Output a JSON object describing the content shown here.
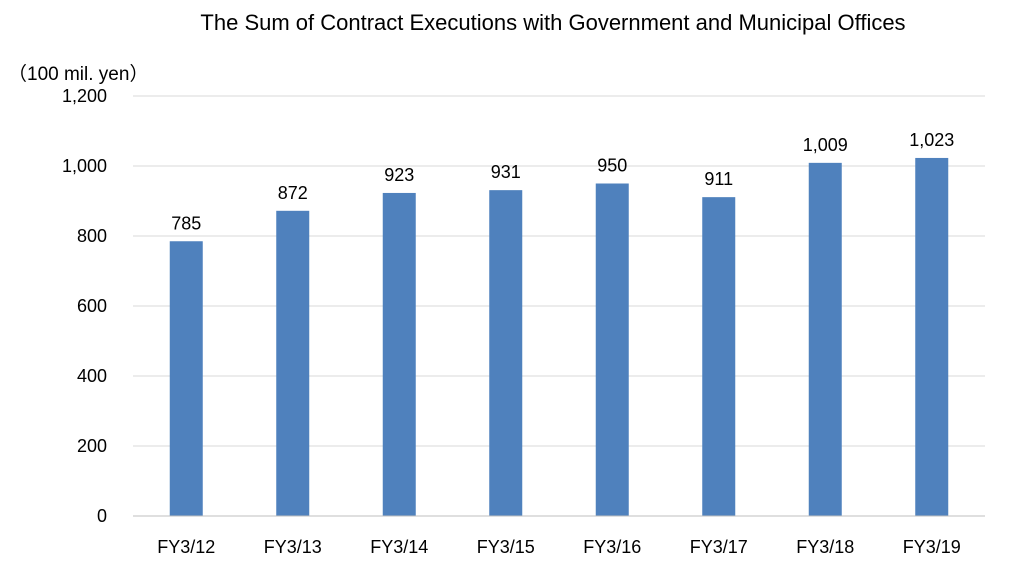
{
  "chart_data": {
    "type": "bar",
    "title": "The Sum of Contract Executions with Government and Municipal Offices",
    "unit_label": "（100 mil. yen）",
    "categories": [
      "FY3/12",
      "FY3/13",
      "FY3/14",
      "FY3/15",
      "FY3/16",
      "FY3/17",
      "FY3/18",
      "FY3/19"
    ],
    "series": [
      {
        "values": [
          785,
          872,
          923,
          931,
          950,
          911,
          1009,
          1023
        ],
        "value_labels": [
          "785",
          "872",
          "923",
          "931",
          "950",
          "911",
          "1,009",
          "1,023"
        ]
      }
    ],
    "ylim": [
      0,
      1200
    ],
    "yticks": [
      0,
      200,
      400,
      600,
      800,
      1000,
      1200
    ],
    "ytick_labels": [
      "0",
      "200",
      "400",
      "600",
      "800",
      "1,000",
      "1,200"
    ],
    "grid": true,
    "bar_color": "#4f81bd",
    "grid_color": "#d9d9d9",
    "axis_color": "#bfbfbf"
  }
}
